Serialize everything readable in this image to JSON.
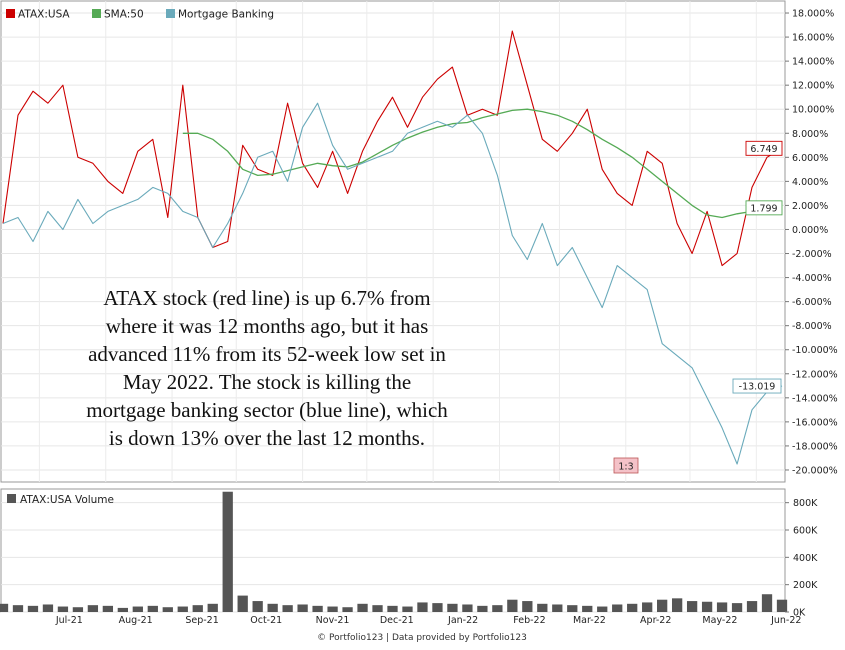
{
  "chart_data": [
    {
      "type": "line",
      "legend_placement": "top-left",
      "ylim": [
        -21,
        19
      ],
      "y_ticks": [
        "18.000%",
        "16.000%",
        "14.000%",
        "12.000%",
        "10.000%",
        "8.000%",
        "6.000%",
        "4.000%",
        "2.000%",
        "0.000%",
        "-2.000%",
        "-4.000%",
        "-6.000%",
        "-8.000%",
        "-10.000%",
        "-12.000%",
        "-14.000%",
        "-16.000%",
        "-18.000%",
        "-20.000%"
      ],
      "x_ticks": [
        "Jul-21",
        "Aug-21",
        "Sep-21",
        "Oct-21",
        "Nov-21",
        "Dec-21",
        "Jan-22",
        "Feb-22",
        "Mar-22",
        "Apr-22",
        "May-22",
        "Jun-22"
      ],
      "x": [
        "2021-06-14",
        "2021-06-21",
        "2021-06-28",
        "2021-07-05",
        "2021-07-12",
        "2021-07-19",
        "2021-07-26",
        "2021-08-02",
        "2021-08-09",
        "2021-08-16",
        "2021-08-23",
        "2021-08-30",
        "2021-09-06",
        "2021-09-13",
        "2021-09-20",
        "2021-09-27",
        "2021-10-04",
        "2021-10-11",
        "2021-10-18",
        "2021-10-25",
        "2021-11-01",
        "2021-11-08",
        "2021-11-15",
        "2021-11-22",
        "2021-11-29",
        "2021-12-06",
        "2021-12-13",
        "2021-12-20",
        "2021-12-27",
        "2022-01-03",
        "2022-01-10",
        "2022-01-17",
        "2022-01-24",
        "2022-01-31",
        "2022-02-07",
        "2022-02-14",
        "2022-02-21",
        "2022-02-28",
        "2022-03-07",
        "2022-03-14",
        "2022-03-21",
        "2022-03-28",
        "2022-04-04",
        "2022-04-11",
        "2022-04-18",
        "2022-04-25",
        "2022-05-02",
        "2022-05-09",
        "2022-05-16",
        "2022-05-23",
        "2022-05-30",
        "2022-06-06",
        "2022-06-13"
      ],
      "series": [
        {
          "name": "ATAX:USA",
          "color": "#cc0000",
          "end_label": "6.749",
          "values": [
            0.5,
            9.5,
            11.5,
            10.5,
            12.0,
            6.0,
            5.5,
            4.0,
            3.0,
            6.5,
            7.5,
            1.0,
            12.0,
            1.0,
            -1.5,
            -1.0,
            7.0,
            5.0,
            4.5,
            10.5,
            5.5,
            3.5,
            6.5,
            3.0,
            6.5,
            9.0,
            11.0,
            8.5,
            11.0,
            12.5,
            13.5,
            9.5,
            10.0,
            9.5,
            16.5,
            12.0,
            7.5,
            6.5,
            8.0,
            10.0,
            5.0,
            3.0,
            2.0,
            6.5,
            5.5,
            0.5,
            -2.0,
            1.5,
            -3.0,
            -2.0,
            3.5,
            6.0,
            6.749
          ]
        },
        {
          "name": "SMA:50",
          "color": "#55aa55",
          "end_label": "1.799",
          "values": [
            null,
            null,
            null,
            null,
            null,
            null,
            null,
            null,
            null,
            null,
            null,
            null,
            8.0,
            8.0,
            7.5,
            6.5,
            5.0,
            4.5,
            4.6,
            4.9,
            5.2,
            5.5,
            5.3,
            5.2,
            5.6,
            6.3,
            7.0,
            7.6,
            8.1,
            8.5,
            8.8,
            8.9,
            9.3,
            9.6,
            9.9,
            10.0,
            9.8,
            9.5,
            9.0,
            8.3,
            7.5,
            6.8,
            6.0,
            5.0,
            4.0,
            3.0,
            2.0,
            1.2,
            1.0,
            1.3,
            1.5,
            1.7,
            1.799
          ]
        },
        {
          "name": "Mortgage Banking",
          "color": "#6aaabb",
          "end_label": "-13.019",
          "values": [
            0.5,
            1.0,
            -1.0,
            1.5,
            0.0,
            2.5,
            0.5,
            1.5,
            2.0,
            2.5,
            3.5,
            3.0,
            1.5,
            1.0,
            -1.5,
            0.5,
            3.0,
            6.0,
            6.5,
            4.0,
            8.5,
            10.5,
            7.0,
            5.0,
            5.5,
            6.0,
            6.5,
            8.0,
            8.5,
            9.0,
            8.5,
            9.5,
            8.0,
            4.5,
            -0.5,
            -2.5,
            0.5,
            -3.0,
            -1.5,
            -4.0,
            -6.5,
            -3.0,
            -4.0,
            -5.0,
            -9.5,
            -10.5,
            -11.5,
            -14.0,
            -16.5,
            -19.5,
            -15.0,
            -13.5,
            -13.019
          ]
        }
      ],
      "annotations": [
        "ATAX stock (red line) is up 6.7% from",
        "where it was 12 months ago, but it has",
        "advanced 11% from its 52-week low set in",
        "May 2022. The stock is killing the",
        "mortgage banking sector (blue line), which",
        "is down 13% over the last 12 months."
      ],
      "split_label": "1:3"
    },
    {
      "type": "bar",
      "title": "ATAX:USA Volume",
      "ylim": [
        0,
        900000
      ],
      "y_ticks": [
        "800K",
        "600K",
        "400K",
        "200K",
        "0K"
      ],
      "series": [
        {
          "name": "ATAX:USA Volume",
          "color": "#555555",
          "values": [
            60000,
            50000,
            45000,
            55000,
            40000,
            35000,
            50000,
            45000,
            30000,
            40000,
            45000,
            35000,
            40000,
            50000,
            60000,
            880000,
            120000,
            80000,
            60000,
            50000,
            55000,
            45000,
            40000,
            35000,
            60000,
            50000,
            45000,
            40000,
            70000,
            65000,
            60000,
            55000,
            45000,
            50000,
            90000,
            80000,
            60000,
            55000,
            50000,
            45000,
            40000,
            55000,
            60000,
            70000,
            90000,
            100000,
            80000,
            75000,
            70000,
            65000,
            80000,
            130000,
            90000
          ]
        }
      ]
    }
  ],
  "footer": "© Portfolio123 | Data provided by Portfolio123"
}
